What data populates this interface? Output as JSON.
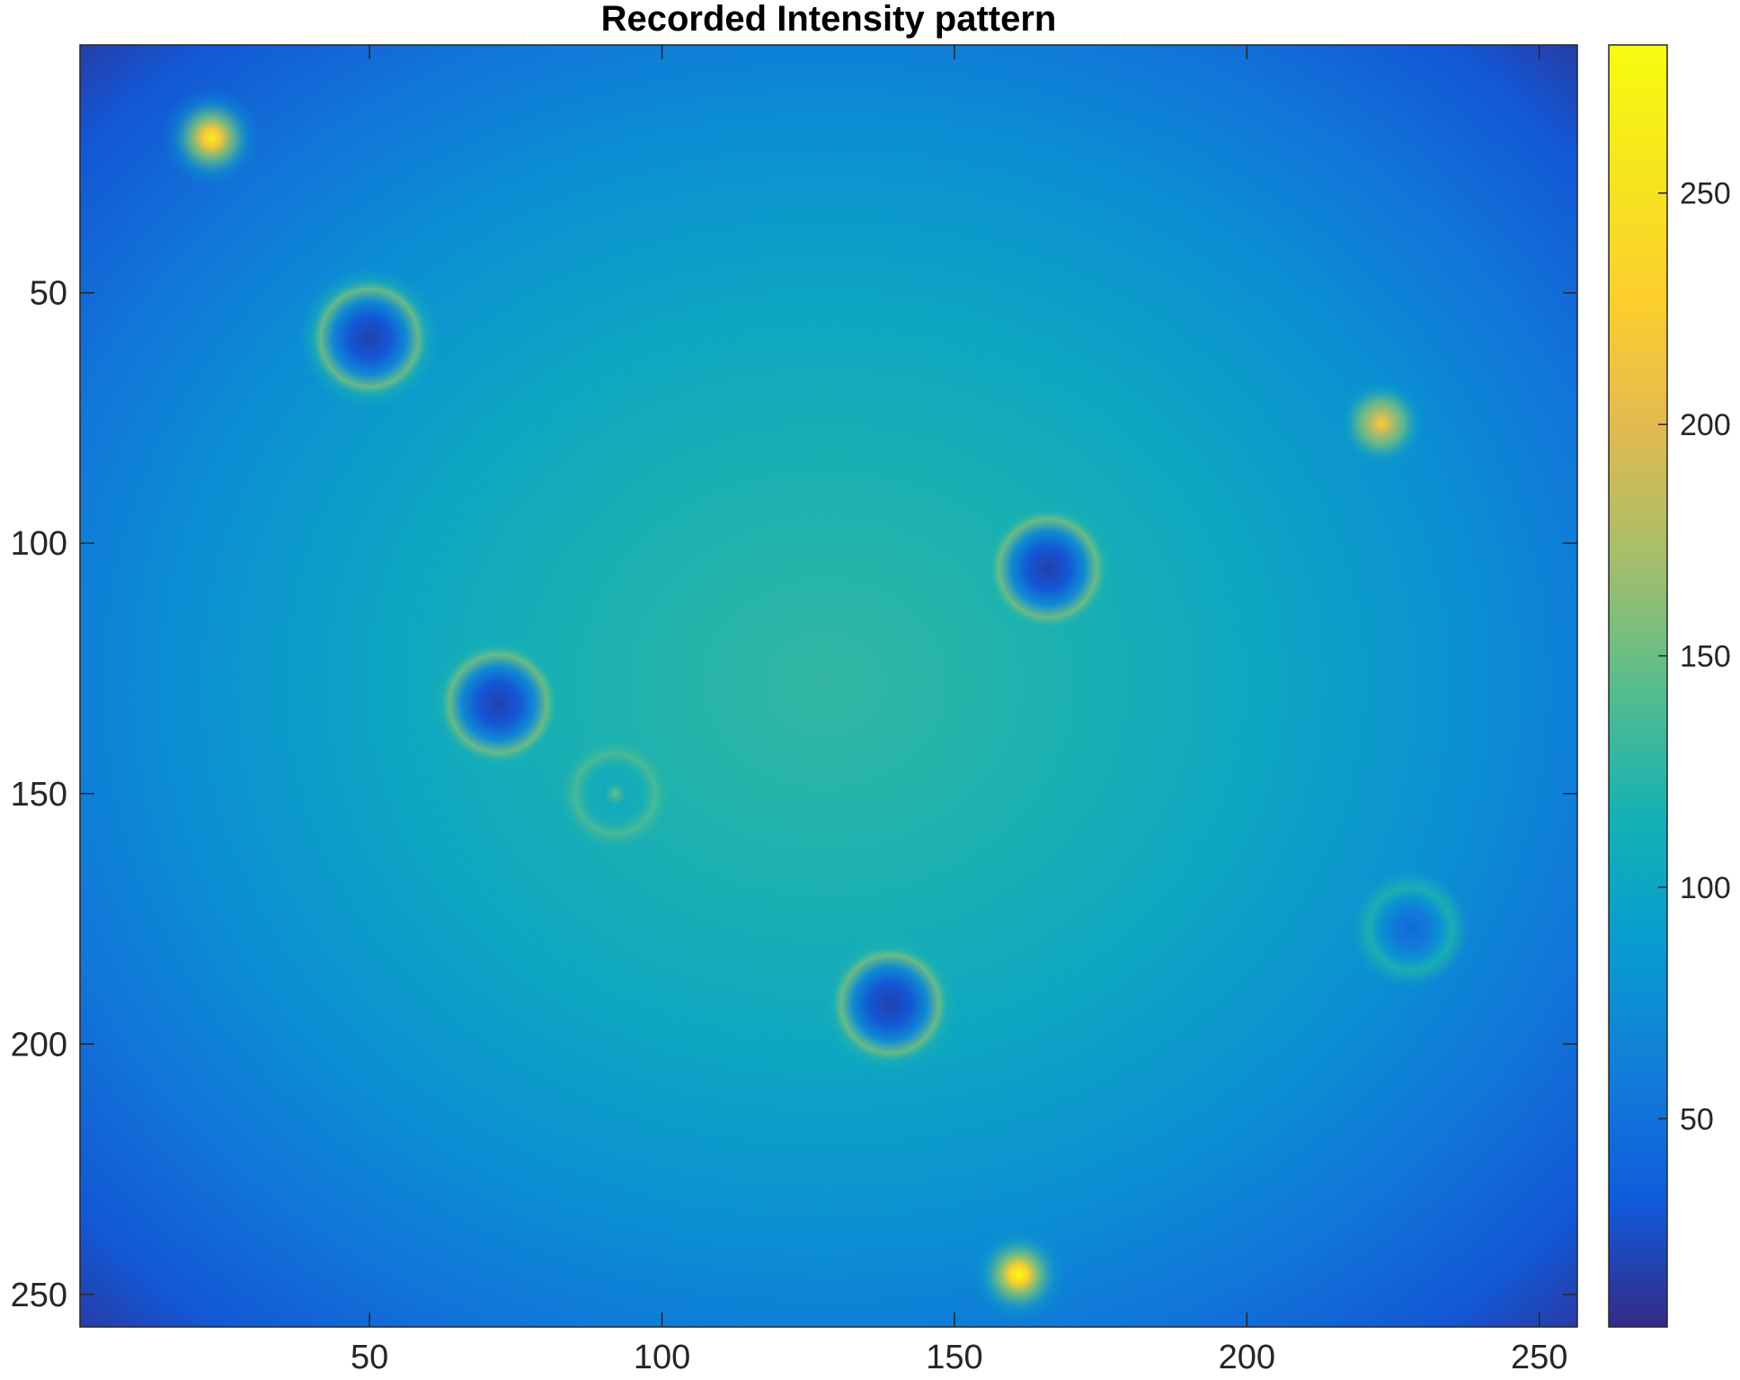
{
  "chart_data": {
    "type": "heatmap",
    "title": "Recorded Intensity pattern",
    "xlabel": "",
    "ylabel": "",
    "xlim": [
      0.5,
      256.5
    ],
    "ylim": [
      0.5,
      256.5
    ],
    "y_direction": "reversed",
    "x_ticks": [
      50,
      100,
      150,
      200,
      250
    ],
    "x_tick_labels": [
      "50",
      "100",
      "150",
      "200",
      "250"
    ],
    "y_ticks": [
      50,
      100,
      150,
      200,
      250
    ],
    "y_tick_labels": [
      "50",
      "100",
      "150",
      "200",
      "250"
    ],
    "colormap": "parula",
    "colorbar": {
      "placement": "right",
      "range": [
        5,
        282
      ],
      "ticks": [
        50,
        100,
        150,
        200,
        250
      ],
      "tick_labels": [
        "50",
        "100",
        "150",
        "200",
        "250"
      ]
    },
    "background": {
      "center": [
        128,
        128
      ],
      "center_value": 128,
      "corner_value": 12
    },
    "features": [
      {
        "kind": "bright-spot",
        "x": 23,
        "y": 19,
        "peak": 265
      },
      {
        "kind": "dark-ring",
        "x": 50,
        "y": 59,
        "min": 18
      },
      {
        "kind": "bright-spot",
        "x": 223,
        "y": 76,
        "peak": 225
      },
      {
        "kind": "dark-ring",
        "x": 166,
        "y": 105,
        "min": 18
      },
      {
        "kind": "dark-ring",
        "x": 72,
        "y": 132,
        "min": 18
      },
      {
        "kind": "faint-ring",
        "x": 92,
        "y": 150,
        "min": 105
      },
      {
        "kind": "dark-ring",
        "x": 228,
        "y": 177,
        "min": 45
      },
      {
        "kind": "dark-ring",
        "x": 139,
        "y": 192,
        "min": 18
      },
      {
        "kind": "bright-spot",
        "x": 161,
        "y": 246,
        "peak": 282
      }
    ],
    "grid": false
  }
}
